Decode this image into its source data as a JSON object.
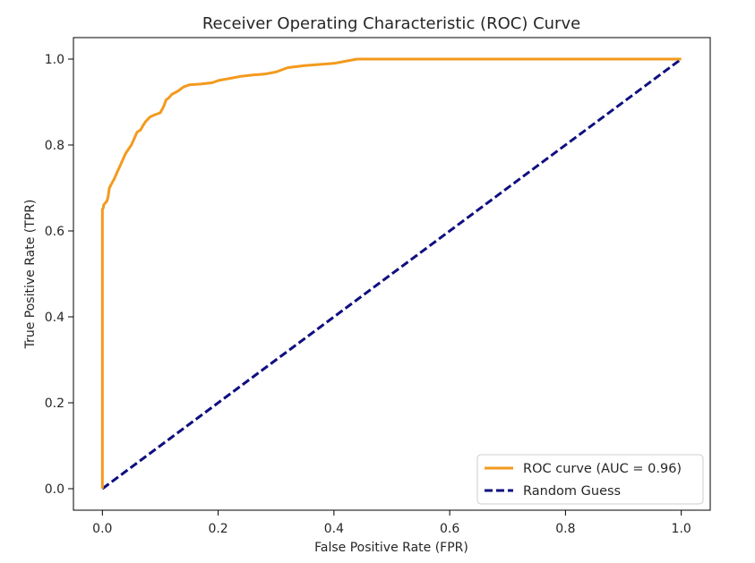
{
  "chart_data": {
    "type": "line",
    "title": "Receiver Operating Characteristic (ROC) Curve",
    "xlabel": "False Positive Rate (FPR)",
    "ylabel": "True Positive Rate (TPR)",
    "xlim": [
      -0.05,
      1.05
    ],
    "ylim": [
      -0.05,
      1.05
    ],
    "xticks": [
      "0.0",
      "0.2",
      "0.4",
      "0.6",
      "0.8",
      "1.0"
    ],
    "yticks": [
      "0.0",
      "0.2",
      "0.4",
      "0.6",
      "0.8",
      "1.0"
    ],
    "grid": false,
    "legend_position": "lower-right",
    "series": [
      {
        "name": "ROC curve (AUC = 0.96)",
        "color": "#f39a1e",
        "style": "solid",
        "x": [
          0.0,
          0.0,
          0.002,
          0.002,
          0.008,
          0.01,
          0.012,
          0.02,
          0.03,
          0.04,
          0.05,
          0.06,
          0.066,
          0.07,
          0.075,
          0.082,
          0.09,
          0.1,
          0.106,
          0.11,
          0.115,
          0.12,
          0.13,
          0.14,
          0.15,
          0.17,
          0.19,
          0.2,
          0.22,
          0.24,
          0.26,
          0.28,
          0.3,
          0.31,
          0.32,
          0.35,
          0.38,
          0.4,
          0.42,
          0.44,
          0.5,
          0.6,
          0.7,
          0.8,
          0.9,
          1.0
        ],
        "y": [
          0.0,
          0.65,
          0.655,
          0.66,
          0.67,
          0.68,
          0.7,
          0.72,
          0.75,
          0.78,
          0.8,
          0.83,
          0.835,
          0.845,
          0.855,
          0.865,
          0.87,
          0.875,
          0.89,
          0.905,
          0.91,
          0.918,
          0.925,
          0.935,
          0.94,
          0.942,
          0.945,
          0.95,
          0.955,
          0.96,
          0.963,
          0.965,
          0.97,
          0.975,
          0.98,
          0.985,
          0.988,
          0.99,
          0.995,
          1.0,
          1.0,
          1.0,
          1.0,
          1.0,
          1.0,
          1.0
        ]
      },
      {
        "name": "Random Guess",
        "color": "#0f0f80",
        "style": "dashed",
        "x": [
          0.0,
          1.0
        ],
        "y": [
          0.0,
          1.0
        ]
      }
    ]
  }
}
